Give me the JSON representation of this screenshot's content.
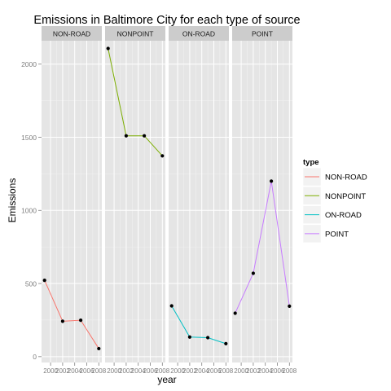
{
  "chart_data": {
    "type": "line",
    "title": "Emissions in Baltimore City for each type of source",
    "xlabel": "year",
    "ylabel": "Emissions",
    "legend_title": "type",
    "legend_position": "right",
    "grid": true,
    "ylim": [
      -40,
      2160
    ],
    "xlim": [
      1998.5,
      2008.5
    ],
    "y_ticks": [
      0,
      500,
      1000,
      1500,
      2000
    ],
    "x_ticks": [
      2000,
      2002,
      2004,
      2006,
      2008
    ],
    "x_tick_labels": [
      "2000",
      "2002",
      "2004",
      "2006",
      "2008"
    ],
    "x": [
      1999,
      2002,
      2005,
      2008
    ],
    "series": [
      {
        "name": "NON-ROAD",
        "color": "#f8766d",
        "values": [
          522,
          242,
          249,
          55
        ]
      },
      {
        "name": "NONPOINT",
        "color": "#7cae00",
        "values": [
          2107,
          1510,
          1510,
          1373
        ]
      },
      {
        "name": "ON-ROAD",
        "color": "#00bfc4",
        "values": [
          347,
          134,
          130,
          89
        ]
      },
      {
        "name": "POINT",
        "color": "#c77cff",
        "values": [
          297,
          570,
          1200,
          345
        ]
      }
    ]
  }
}
